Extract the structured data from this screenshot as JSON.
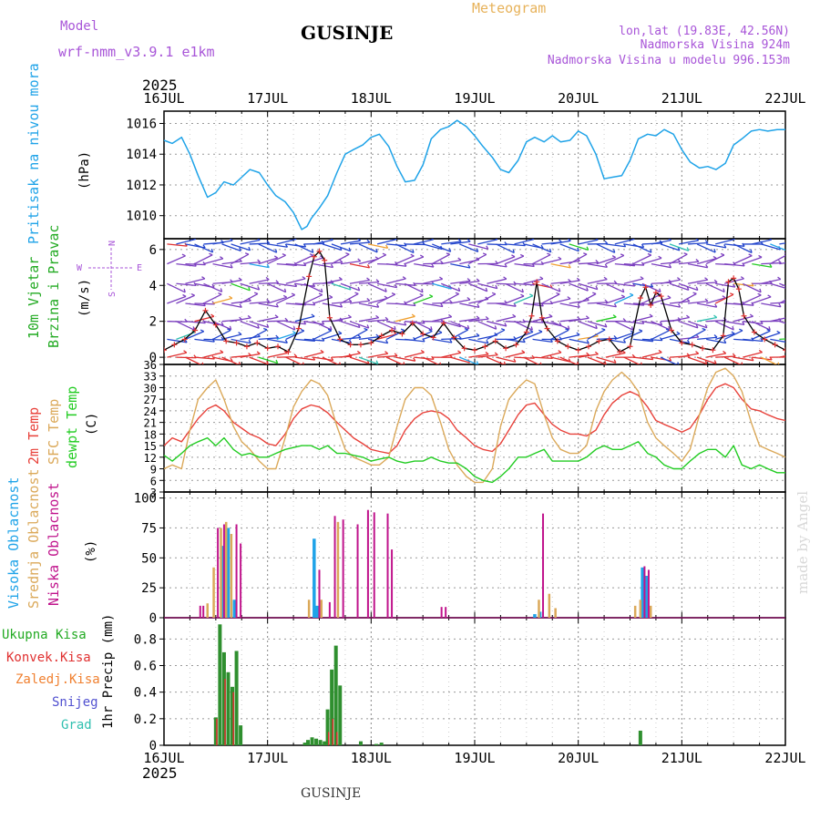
{
  "header": {
    "model_label": "Model",
    "model_name": "wrf-nmm_v3.9.1 e1km",
    "station": "GUSINJE",
    "title": "Meteogram",
    "lonlat": "lon,lat (19.83E, 42.56N)",
    "elev": "Nadmorska Visina 924m",
    "elev_model": "Nadmorska Visina u modelu 996.153m",
    "footer_station": "GUSINJE",
    "credit": "made by Angel"
  },
  "colors": {
    "pressure": "#1fa3e8",
    "t2m": "#e8413a",
    "sfc": "#dba95a",
    "dew": "#22cc22",
    "wind_black": "#000000",
    "wind_red": "#e03030",
    "high": "#1fa3e8",
    "mid": "#dba95a",
    "low": "#c0148c",
    "purple": "#7b3fbf",
    "rain": "#2f8f2f",
    "conv": "#e03030",
    "frozen": "#f08030",
    "snow": "#5050d0",
    "hail": "#30c0b0"
  },
  "chart_data": [
    {
      "type": "line",
      "panel": "pressure",
      "year_label": "2025",
      "x_tick_labels": [
        "16JUL",
        "17JUL",
        "18JUL",
        "19JUL",
        "20JUL",
        "21JUL",
        "22JUL"
      ],
      "ylabel_side": "Pritisak na nivou mora",
      "ylabel": "(hPa)",
      "ylim": [
        1008.5,
        1016.8
      ],
      "yticks": [
        1010,
        1012,
        1014,
        1016
      ],
      "grid": true,
      "x_days": [
        0,
        0.08,
        0.17,
        0.25,
        0.33,
        0.42,
        0.5,
        0.58,
        0.67,
        0.75,
        0.83,
        0.92,
        1,
        1.08,
        1.17,
        1.25,
        1.33,
        1.38,
        1.42,
        1.5,
        1.58,
        1.67,
        1.75,
        1.83,
        1.92,
        2,
        2.08,
        2.17,
        2.25,
        2.33,
        2.42,
        2.5,
        2.58,
        2.67,
        2.75,
        2.83,
        2.92,
        3,
        3.08,
        3.17,
        3.25,
        3.33,
        3.42,
        3.5,
        3.58,
        3.67,
        3.75,
        3.83,
        3.92,
        4,
        4.08,
        4.17,
        4.25,
        4.33,
        4.42,
        4.5,
        4.58,
        4.67,
        4.75,
        4.83,
        4.92,
        5,
        5.08,
        5.17,
        5.25,
        5.33,
        5.42,
        5.5,
        5.58,
        5.67,
        5.75,
        5.83,
        5.92,
        6
      ],
      "series": [
        {
          "values": [
            1014.9,
            1014.7,
            1015.1,
            1014.0,
            1012.6,
            1011.2,
            1011.5,
            1012.2,
            1012.0,
            1012.5,
            1013.0,
            1012.8,
            1012.0,
            1011.3,
            1010.9,
            1010.2,
            1009.1,
            1009.3,
            1009.8,
            1010.5,
            1011.3,
            1012.8,
            1014.0,
            1014.3,
            1014.6,
            1015.1,
            1015.3,
            1014.5,
            1013.2,
            1012.2,
            1012.3,
            1013.3,
            1015.0,
            1015.6,
            1015.8,
            1016.2,
            1015.8,
            1015.2,
            1014.5,
            1013.8,
            1013.0,
            1012.8,
            1013.6,
            1014.8,
            1015.1,
            1014.8,
            1015.2,
            1014.8,
            1014.9,
            1015.5,
            1015.2,
            1014.0,
            1012.4,
            1012.5,
            1012.6,
            1013.6,
            1015.0,
            1015.3,
            1015.2,
            1015.6,
            1015.3,
            1014.3,
            1013.5,
            1013.1,
            1013.2,
            1013.0,
            1013.4,
            1014.6,
            1015.0,
            1015.5,
            1015.6,
            1015.5,
            1015.6,
            1015.6
          ]
        }
      ]
    },
    {
      "type": "line",
      "panel": "wind",
      "ylabel_side": [
        "10m Vjetar",
        "Brzina i Pravac"
      ],
      "ylabel": "(m/s)",
      "compass": {
        "n": "N",
        "w": "W",
        "e": "E",
        "s": "S"
      },
      "ylim": [
        -0.4,
        6.6
      ],
      "yticks": [
        0,
        2,
        4,
        6
      ],
      "grid": true,
      "x_days": [
        0,
        0.1,
        0.2,
        0.3,
        0.4,
        0.5,
        0.6,
        0.7,
        0.8,
        0.9,
        1,
        1.1,
        1.2,
        1.3,
        1.4,
        1.45,
        1.5,
        1.55,
        1.6,
        1.7,
        1.8,
        1.9,
        2,
        2.1,
        2.2,
        2.3,
        2.4,
        2.5,
        2.6,
        2.7,
        2.8,
        2.9,
        3,
        3.1,
        3.2,
        3.3,
        3.4,
        3.5,
        3.55,
        3.6,
        3.65,
        3.7,
        3.8,
        3.9,
        4,
        4.1,
        4.2,
        4.3,
        4.4,
        4.5,
        4.6,
        4.65,
        4.7,
        4.75,
        4.8,
        4.9,
        5,
        5.1,
        5.2,
        5.3,
        5.4,
        5.45,
        5.5,
        5.55,
        5.6,
        5.7,
        5.8,
        5.9,
        6
      ],
      "series": [
        {
          "name": "speed",
          "values": [
            0.4,
            0.7,
            1.0,
            1.5,
            2.6,
            1.8,
            0.9,
            0.8,
            0.6,
            0.8,
            0.5,
            0.6,
            0.3,
            1.6,
            4.5,
            5.6,
            5.9,
            5.4,
            2.2,
            1.0,
            0.7,
            0.7,
            0.8,
            1.2,
            1.5,
            1.3,
            1.9,
            1.3,
            1.1,
            1.9,
            1.1,
            0.5,
            0.4,
            0.6,
            0.9,
            0.5,
            0.7,
            1.4,
            2.3,
            4.2,
            2.2,
            1.6,
            0.9,
            0.6,
            0.4,
            0.6,
            0.9,
            1.0,
            0.3,
            0.6,
            3.3,
            3.9,
            2.9,
            3.6,
            3.4,
            1.5,
            0.8,
            0.7,
            0.5,
            0.4,
            1.2,
            4.2,
            4.4,
            3.8,
            2.3,
            1.4,
            1.0,
            0.7,
            0.4
          ]
        }
      ]
    },
    {
      "type": "line",
      "panel": "temperature",
      "ylabel_side": [
        "2m Temp",
        "SFC Temp",
        "dewpt Temp"
      ],
      "ylabel": "(C)",
      "ylim": [
        3,
        36
      ],
      "yticks": [
        3,
        6,
        9,
        12,
        15,
        18,
        21,
        24,
        27,
        30,
        33,
        36
      ],
      "grid": true,
      "x_days": [
        0,
        0.08,
        0.17,
        0.25,
        0.33,
        0.42,
        0.5,
        0.58,
        0.67,
        0.75,
        0.83,
        0.92,
        1,
        1.08,
        1.17,
        1.25,
        1.33,
        1.42,
        1.5,
        1.58,
        1.67,
        1.75,
        1.83,
        1.92,
        2,
        2.08,
        2.17,
        2.25,
        2.33,
        2.42,
        2.5,
        2.58,
        2.67,
        2.75,
        2.83,
        2.92,
        3,
        3.08,
        3.17,
        3.25,
        3.33,
        3.42,
        3.5,
        3.58,
        3.67,
        3.75,
        3.83,
        3.92,
        4,
        4.08,
        4.17,
        4.25,
        4.33,
        4.42,
        4.5,
        4.58,
        4.67,
        4.75,
        4.83,
        4.92,
        5,
        5.08,
        5.17,
        5.25,
        5.33,
        5.42,
        5.5,
        5.58,
        5.67,
        5.75,
        5.83,
        5.92,
        6
      ],
      "series": [
        {
          "name": "2m Temp",
          "values": [
            15,
            17,
            16,
            19,
            22,
            24.5,
            25.5,
            24,
            21,
            19.5,
            18,
            17,
            15.5,
            15,
            18,
            22,
            24.5,
            25.5,
            25,
            23.5,
            21,
            19,
            17,
            15.5,
            14,
            13.5,
            13,
            15,
            19,
            22,
            23.5,
            24,
            23.5,
            22,
            19,
            17,
            15,
            14,
            13.5,
            15.5,
            19,
            23,
            25.5,
            26,
            23,
            20.5,
            19,
            18,
            18,
            17.5,
            19,
            23,
            26,
            28,
            29,
            28,
            25,
            21.5,
            20.5,
            19.5,
            18.5,
            19.5,
            23,
            27,
            30,
            31,
            30,
            27,
            24.5,
            24,
            23,
            22,
            21.5
          ]
        },
        {
          "name": "SFC Temp",
          "values": [
            9,
            10,
            9,
            19,
            27,
            30,
            32,
            27,
            20,
            16,
            14,
            11,
            9,
            9,
            17,
            25,
            29,
            32,
            31,
            28,
            20,
            14,
            12,
            11,
            10,
            10,
            12,
            20,
            27,
            30,
            30,
            28,
            21,
            14,
            10,
            7,
            5.5,
            5.5,
            9,
            20,
            27,
            30,
            32,
            31,
            23,
            17,
            14,
            13,
            13,
            15,
            24,
            29,
            32,
            34,
            32,
            29,
            21,
            17,
            15,
            13,
            11,
            14,
            23,
            30,
            34,
            35,
            33,
            29,
            21,
            15,
            14,
            13,
            12
          ]
        },
        {
          "name": "dewpt Temp",
          "values": [
            12.5,
            11,
            13,
            15,
            16,
            17,
            15,
            17,
            14,
            12.5,
            13,
            12,
            12,
            13,
            14,
            14.5,
            15,
            15,
            14,
            15,
            13,
            13,
            12.5,
            12,
            11,
            11.5,
            12,
            11,
            10.5,
            11,
            11,
            12,
            11,
            10.5,
            10.5,
            9,
            7,
            6,
            5.5,
            7,
            9,
            12,
            12,
            13,
            14,
            11,
            11,
            11,
            11,
            12,
            14,
            15,
            14,
            14,
            15,
            16,
            13,
            12,
            10,
            9,
            9,
            11,
            13,
            14,
            14,
            12,
            15,
            10,
            9,
            10,
            9,
            8,
            8
          ]
        }
      ]
    },
    {
      "type": "bar",
      "panel": "clouds",
      "ylabel_side": [
        "Visoka Oblacnost",
        "Srednja Oblacnost",
        "Niska Oblacnost"
      ],
      "ylabel": "(%)",
      "ylim": [
        0,
        105
      ],
      "yticks": [
        0,
        25,
        50,
        75,
        100
      ],
      "grid": true,
      "series": [
        {
          "name": "Visoka Oblacnost",
          "x_days": [
            0.57,
            0.62,
            0.68,
            1.45,
            1.48,
            3.58,
            3.63,
            4.62,
            4.66
          ],
          "values": [
            60,
            75,
            15,
            66,
            10,
            3,
            5,
            42,
            35
          ]
        },
        {
          "name": "Srednja Oblacnost",
          "x_days": [
            0.42,
            0.48,
            0.55,
            0.6,
            0.65,
            1.4,
            1.52,
            1.68,
            3.62,
            3.72,
            3.78,
            4.55,
            4.6,
            4.7
          ],
          "values": [
            12,
            42,
            75,
            80,
            70,
            15,
            15,
            80,
            15,
            20,
            8,
            10,
            15,
            10
          ]
        },
        {
          "name": "Niska Oblacnost",
          "x_days": [
            0.35,
            0.38,
            0.52,
            0.58,
            0.7,
            0.74,
            1.5,
            1.6,
            1.65,
            1.73,
            1.87,
            1.97,
            2.03,
            2.16,
            2.2,
            2.68,
            2.72,
            3.66,
            4.64,
            4.68
          ],
          "values": [
            10,
            10,
            75,
            78,
            78,
            62,
            40,
            13,
            85,
            82,
            78,
            90,
            88,
            87,
            57,
            9,
            9,
            87,
            43,
            40
          ]
        }
      ]
    },
    {
      "type": "bar",
      "panel": "precipitation",
      "ylabel_side": [
        "Ukupna Kisa",
        "Konvek.Kisa",
        "Zaledj.Kisa",
        "Snijeg",
        "Grad"
      ],
      "ylabel": "1hr Precip (mm)",
      "ylim": [
        0,
        0.96
      ],
      "yticks": [
        0,
        0.2,
        0.4,
        0.6,
        0.8
      ],
      "grid": true,
      "footer_year": "2025",
      "series": [
        {
          "name": "Ukupna Kisa",
          "x_days": [
            0.5,
            0.54,
            0.58,
            0.62,
            0.66,
            0.7,
            0.74,
            1.36,
            1.39,
            1.43,
            1.47,
            1.51,
            1.55,
            1.58,
            1.62,
            1.66,
            1.7,
            1.9,
            2.05,
            2.1,
            4.6
          ],
          "values": [
            0.21,
            0.91,
            0.7,
            0.55,
            0.44,
            0.71,
            0.15,
            0.02,
            0.04,
            0.06,
            0.05,
            0.04,
            0.03,
            0.27,
            0.57,
            0.75,
            0.45,
            0.03,
            0.01,
            0.02,
            0.11
          ]
        },
        {
          "name": "Konvek.Kisa",
          "x_days": [
            0.51,
            0.59,
            0.67,
            1.59,
            1.63,
            1.67
          ],
          "values": [
            0.2,
            0.5,
            0.4,
            0.1,
            0.2,
            0.1
          ]
        }
      ]
    }
  ]
}
